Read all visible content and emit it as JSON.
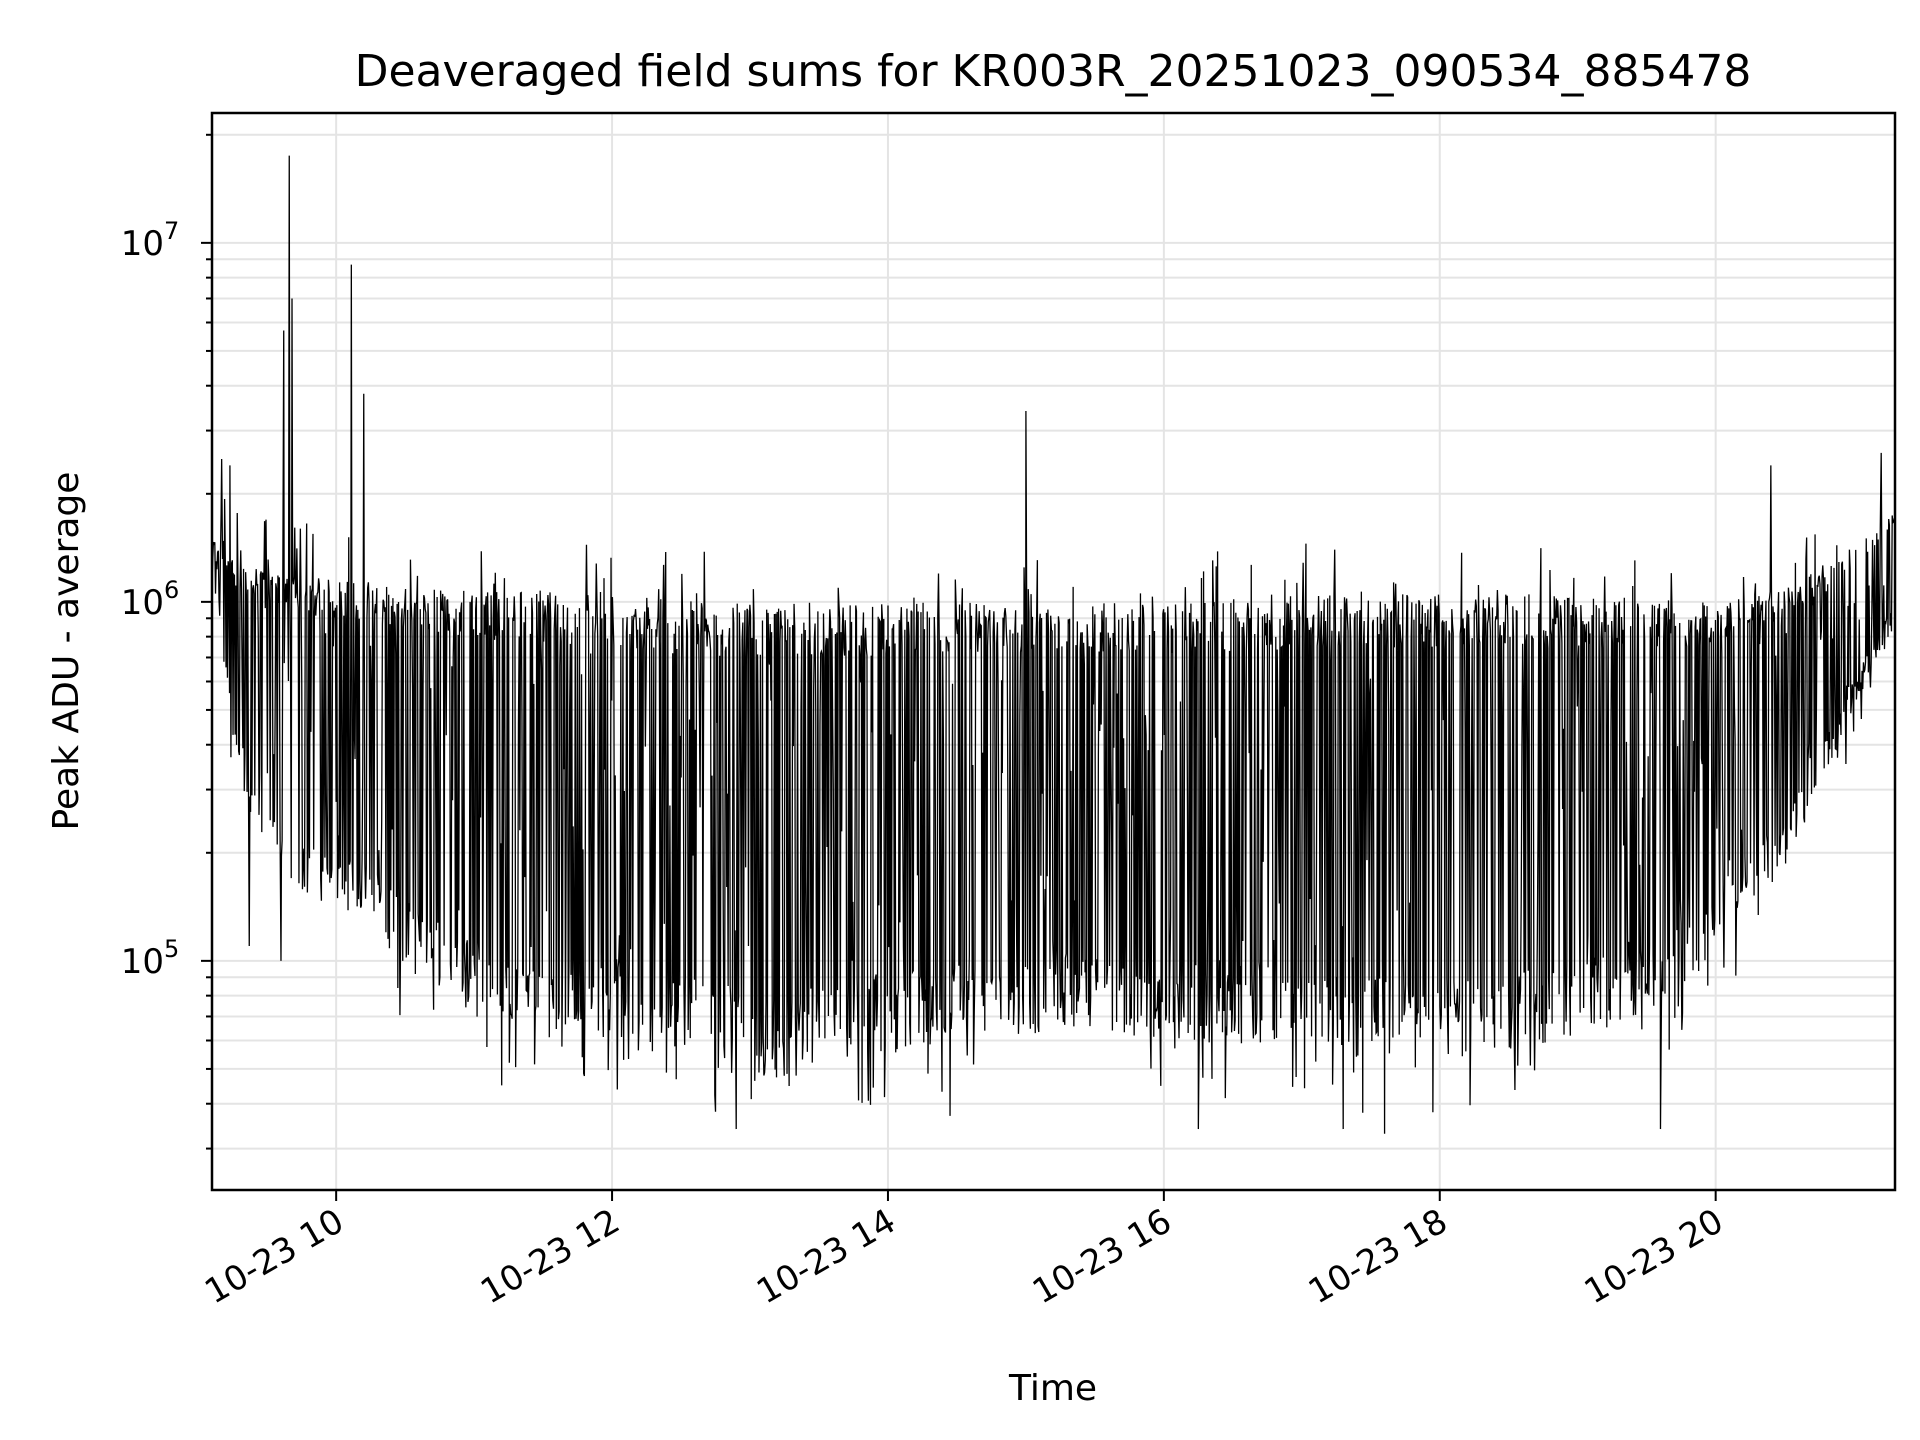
{
  "chart_data": {
    "type": "line",
    "title": "Deaveraged field sums for KR003R_20251023_090534_885478",
    "xlabel": "Time",
    "ylabel": "Peak ADU - average",
    "yscale": "log",
    "xlim_hours": [
      9.1,
      21.3
    ],
    "ylim": [
      23000,
      23000000
    ],
    "grid": true,
    "x_ticks": [
      {
        "value": 10,
        "label": "10-23 10"
      },
      {
        "value": 12,
        "label": "10-23 12"
      },
      {
        "value": 14,
        "label": "10-23 14"
      },
      {
        "value": 16,
        "label": "10-23 16"
      },
      {
        "value": 18,
        "label": "10-23 18"
      },
      {
        "value": 20,
        "label": "10-23 20"
      }
    ],
    "y_ticks": [
      {
        "value": 100000,
        "base": "10",
        "exp": "5"
      },
      {
        "value": 1000000,
        "base": "10",
        "exp": "6"
      },
      {
        "value": 10000000,
        "base": "10",
        "exp": "7"
      }
    ],
    "series_color": "#000000",
    "envelope": {
      "description_hours": "approximate upper/lower envelope of the dense time series (hour of day on 10-23)",
      "upper": [
        [
          9.1,
          1500000
        ],
        [
          9.3,
          1300000
        ],
        [
          9.6,
          1200000
        ],
        [
          10.0,
          1150000
        ],
        [
          11.0,
          1100000
        ],
        [
          12.0,
          1050000
        ],
        [
          13.0,
          1000000
        ],
        [
          14.0,
          1000000
        ],
        [
          15.0,
          1000000
        ],
        [
          16.0,
          1000000
        ],
        [
          17.0,
          1050000
        ],
        [
          18.0,
          1050000
        ],
        [
          19.0,
          1050000
        ],
        [
          20.0,
          1000000
        ],
        [
          20.5,
          1100000
        ],
        [
          21.0,
          1400000
        ],
        [
          21.3,
          1800000
        ]
      ],
      "lower": [
        [
          9.1,
          1100000
        ],
        [
          9.3,
          300000
        ],
        [
          9.5,
          200000
        ],
        [
          9.8,
          150000
        ],
        [
          10.2,
          130000
        ],
        [
          10.5,
          95000
        ],
        [
          11.0,
          70000
        ],
        [
          11.5,
          65000
        ],
        [
          12.0,
          62000
        ],
        [
          12.5,
          55000
        ],
        [
          13.0,
          45000
        ],
        [
          13.5,
          50000
        ],
        [
          14.0,
          55000
        ],
        [
          14.5,
          60000
        ],
        [
          15.0,
          62000
        ],
        [
          15.5,
          65000
        ],
        [
          16.0,
          60000
        ],
        [
          16.5,
          58000
        ],
        [
          17.0,
          57000
        ],
        [
          17.5,
          52000
        ],
        [
          18.0,
          52000
        ],
        [
          18.5,
          55000
        ],
        [
          19.0,
          60000
        ],
        [
          19.5,
          70000
        ],
        [
          19.8,
          80000
        ],
        [
          20.0,
          110000
        ],
        [
          20.5,
          180000
        ],
        [
          21.0,
          500000
        ],
        [
          21.3,
          900000
        ]
      ]
    },
    "spikes": [
      {
        "x": 9.17,
        "y": 2500000
      },
      {
        "x": 9.23,
        "y": 2400000
      },
      {
        "x": 9.62,
        "y": 5700000
      },
      {
        "x": 9.66,
        "y": 17500000
      },
      {
        "x": 9.68,
        "y": 7000000
      },
      {
        "x": 10.11,
        "y": 8700000
      },
      {
        "x": 10.2,
        "y": 3800000
      },
      {
        "x": 15.0,
        "y": 3400000
      },
      {
        "x": 20.4,
        "y": 2400000
      },
      {
        "x": 21.2,
        "y": 2600000
      }
    ],
    "dips": [
      {
        "x": 9.37,
        "y": 110000
      },
      {
        "x": 9.6,
        "y": 100000
      },
      {
        "x": 11.2,
        "y": 45000
      },
      {
        "x": 12.75,
        "y": 38000
      },
      {
        "x": 12.9,
        "y": 34000
      },
      {
        "x": 14.45,
        "y": 37000
      },
      {
        "x": 16.25,
        "y": 34000
      },
      {
        "x": 17.3,
        "y": 34000
      },
      {
        "x": 17.6,
        "y": 33000
      },
      {
        "x": 19.6,
        "y": 34000
      }
    ]
  }
}
